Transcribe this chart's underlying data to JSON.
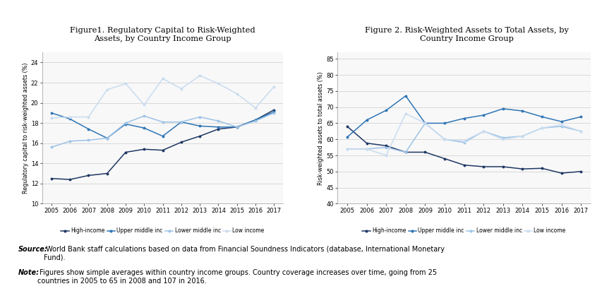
{
  "years": [
    2005,
    2006,
    2007,
    2008,
    2009,
    2010,
    2011,
    2012,
    2013,
    2014,
    2015,
    2016,
    2017
  ],
  "fig1": {
    "title": "Figure1. Regulatory Capital to Risk-Weighted\nAssets, by Country Income Group",
    "ylabel": "Regulatory capital to risk-weighted assets (%)",
    "ylim": [
      10,
      25
    ],
    "yticks": [
      10,
      12,
      14,
      16,
      18,
      20,
      22,
      24
    ],
    "high_income": [
      12.5,
      12.4,
      12.8,
      13.0,
      15.1,
      15.4,
      15.3,
      16.1,
      16.7,
      17.4,
      17.6,
      18.3,
      19.3
    ],
    "upper_middle": [
      19.0,
      18.4,
      17.4,
      16.5,
      17.9,
      17.5,
      16.7,
      18.1,
      17.7,
      17.6,
      17.6,
      18.3,
      19.1
    ],
    "lower_middle": [
      15.6,
      16.2,
      16.3,
      16.5,
      18.0,
      18.7,
      18.1,
      18.1,
      18.6,
      18.2,
      17.6,
      18.2,
      19.0
    ],
    "low_income": [
      18.5,
      18.6,
      18.6,
      21.3,
      21.9,
      19.8,
      22.4,
      21.4,
      22.7,
      21.9,
      20.9,
      19.5,
      21.6
    ]
  },
  "fig2": {
    "title": "Figure 2. Risk-Weighted Assets to Total Assets, by\nCountry Income Group",
    "ylabel": "Risk-weighted assets to total assets (%)",
    "ylim": [
      40,
      87
    ],
    "yticks": [
      40,
      45,
      50,
      55,
      60,
      65,
      70,
      75,
      80,
      85
    ],
    "high_income": [
      64.0,
      58.8,
      58.0,
      56.0,
      56.0,
      54.0,
      52.0,
      51.5,
      51.5,
      50.8,
      51.0,
      49.5,
      50.0
    ],
    "upper_middle": [
      60.7,
      66.0,
      69.0,
      73.5,
      65.0,
      65.0,
      66.5,
      67.5,
      69.5,
      68.8,
      67.0,
      65.5,
      67.0
    ],
    "lower_middle": [
      57.0,
      57.0,
      57.5,
      56.0,
      65.0,
      60.0,
      59.0,
      62.5,
      60.5,
      61.0,
      63.5,
      64.0,
      62.5
    ],
    "low_income": [
      57.0,
      57.0,
      55.0,
      68.0,
      65.0,
      60.0,
      59.5,
      62.5,
      60.0,
      61.0,
      63.5,
      64.5,
      62.5
    ]
  },
  "colors": {
    "high_income": "#1F3864",
    "upper_middle": "#2E75B6",
    "lower_middle": "#9DC3E6",
    "low_income": "#C9DCF0"
  },
  "legend_labels": [
    "High-income",
    "Upper middle inc",
    "Lower middle inc",
    "Low income"
  ],
  "source_italic": "Source:",
  "source_rest": " World Bank staff calculations based on data from Financial Soundness Indicators (database, International Monetary\nFund).",
  "note_italic": "Note:",
  "note_rest": " Figures show simple averages within country income groups. Country coverage increases over time, going from 25\ncountries in 2005 to 65 in 2008 and 107 in 2016."
}
